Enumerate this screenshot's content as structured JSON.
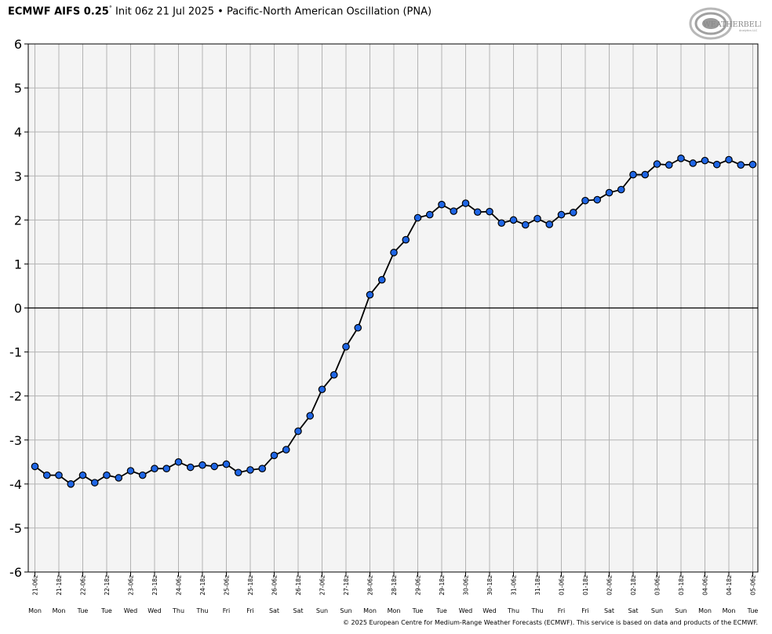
{
  "header": {
    "model": "ECMWF AIFS 0.25",
    "degree": "°",
    "init": "Init 06z 21 Jul 2025",
    "bullet": "•",
    "index_name": "Pacific-North American Oscillation (PNA)"
  },
  "logo": {
    "text_main": "WEATHERBELL",
    "text_sub": "Analytics LLC"
  },
  "credit": "© 2025 European Centre for Medium-Range Weather Forecasts (ECMWF). This service is based on data and products of the ECMWF.",
  "chart_data": {
    "type": "line",
    "title": "Pacific-North American Oscillation (PNA)",
    "xlabel": "",
    "ylabel": "",
    "ylim": [
      -6,
      6
    ],
    "yticks": [
      6,
      5,
      4,
      3,
      2,
      1,
      0,
      -1,
      -2,
      -3,
      -4,
      -5,
      -6
    ],
    "grid": true,
    "zero_line": true,
    "colors": {
      "line": "#000000",
      "marker_fill": "#1f66e5",
      "marker_edge": "#000000",
      "plot_bg": "#f4f4f4",
      "grid": "#b3b3b3"
    },
    "x_ticks": [
      {
        "label": "21-06z",
        "day": "Mon"
      },
      {
        "label": "21-18z",
        "day": "Mon"
      },
      {
        "label": "22-06z",
        "day": "Tue"
      },
      {
        "label": "22-18z",
        "day": "Tue"
      },
      {
        "label": "23-06z",
        "day": "Wed"
      },
      {
        "label": "23-18z",
        "day": "Wed"
      },
      {
        "label": "24-06z",
        "day": "Thu"
      },
      {
        "label": "24-18z",
        "day": "Thu"
      },
      {
        "label": "25-06z",
        "day": "Fri"
      },
      {
        "label": "25-18z",
        "day": "Fri"
      },
      {
        "label": "26-06z",
        "day": "Sat"
      },
      {
        "label": "26-18z",
        "day": "Sat"
      },
      {
        "label": "27-06z",
        "day": "Sun"
      },
      {
        "label": "27-18z",
        "day": "Sun"
      },
      {
        "label": "28-06z",
        "day": "Mon"
      },
      {
        "label": "28-18z",
        "day": "Mon"
      },
      {
        "label": "29-06z",
        "day": "Tue"
      },
      {
        "label": "29-18z",
        "day": "Tue"
      },
      {
        "label": "30-06z",
        "day": "Wed"
      },
      {
        "label": "30-18z",
        "day": "Wed"
      },
      {
        "label": "31-06z",
        "day": "Thu"
      },
      {
        "label": "31-18z",
        "day": "Thu"
      },
      {
        "label": "01-06z",
        "day": "Fri"
      },
      {
        "label": "01-18z",
        "day": "Fri"
      },
      {
        "label": "02-06z",
        "day": "Sat"
      },
      {
        "label": "02-18z",
        "day": "Sat"
      },
      {
        "label": "03-06z",
        "day": "Sun"
      },
      {
        "label": "03-18z",
        "day": "Sun"
      },
      {
        "label": "04-06z",
        "day": "Mon"
      },
      {
        "label": "04-18z",
        "day": "Mon"
      },
      {
        "label": "05-06z",
        "day": "Tue"
      }
    ],
    "series": [
      {
        "values": [
          -3.6,
          -3.8,
          -3.8,
          -4.0,
          -3.8,
          -3.97,
          -3.8,
          -3.86,
          -3.7,
          -3.8,
          -3.65,
          -3.65,
          -3.5,
          -3.62,
          -3.57,
          -3.6,
          -3.55,
          -3.74,
          -3.68,
          -3.65,
          -3.35,
          -3.22,
          -2.8,
          -2.45,
          -1.85,
          -1.52,
          -0.88,
          -0.45,
          0.3,
          0.64,
          1.26,
          1.55,
          2.05,
          2.12,
          2.35,
          2.2,
          2.38,
          2.18,
          2.19,
          1.93,
          2.0,
          1.89,
          2.03,
          1.9,
          2.12,
          2.17,
          2.44,
          2.46,
          2.62,
          2.69,
          3.03,
          3.03,
          3.27,
          3.25,
          3.4,
          3.29,
          3.35,
          3.26,
          3.37,
          3.25,
          3.26
        ]
      }
    ]
  }
}
